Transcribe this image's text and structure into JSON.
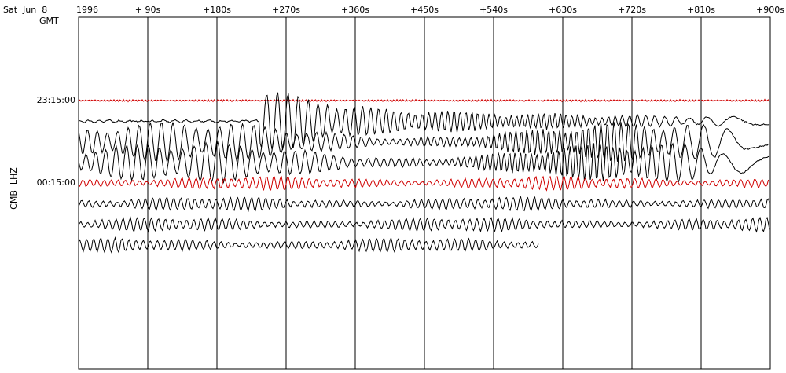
{
  "chart_data": {
    "type": "helicorder",
    "date": "Sat  Jun  8",
    "year": "1996",
    "timezone": "GMT",
    "ylabel": "CMB  LHZ",
    "y_labels": [
      "23:15:00",
      "00:15:00"
    ],
    "xlim": [
      0,
      900
    ],
    "xticks": [
      {
        "value": 90,
        "label": "+ 90s"
      },
      {
        "value": 180,
        "label": "+180s"
      },
      {
        "value": 270,
        "label": "+270s"
      },
      {
        "value": 360,
        "label": "+360s"
      },
      {
        "value": 450,
        "label": "+450s"
      },
      {
        "value": 540,
        "label": "+540s"
      },
      {
        "value": 630,
        "label": "+630s"
      },
      {
        "value": 720,
        "label": "+720s"
      },
      {
        "value": 810,
        "label": "+810s"
      },
      {
        "value": 900,
        "label": "+900s"
      }
    ]
  }
}
